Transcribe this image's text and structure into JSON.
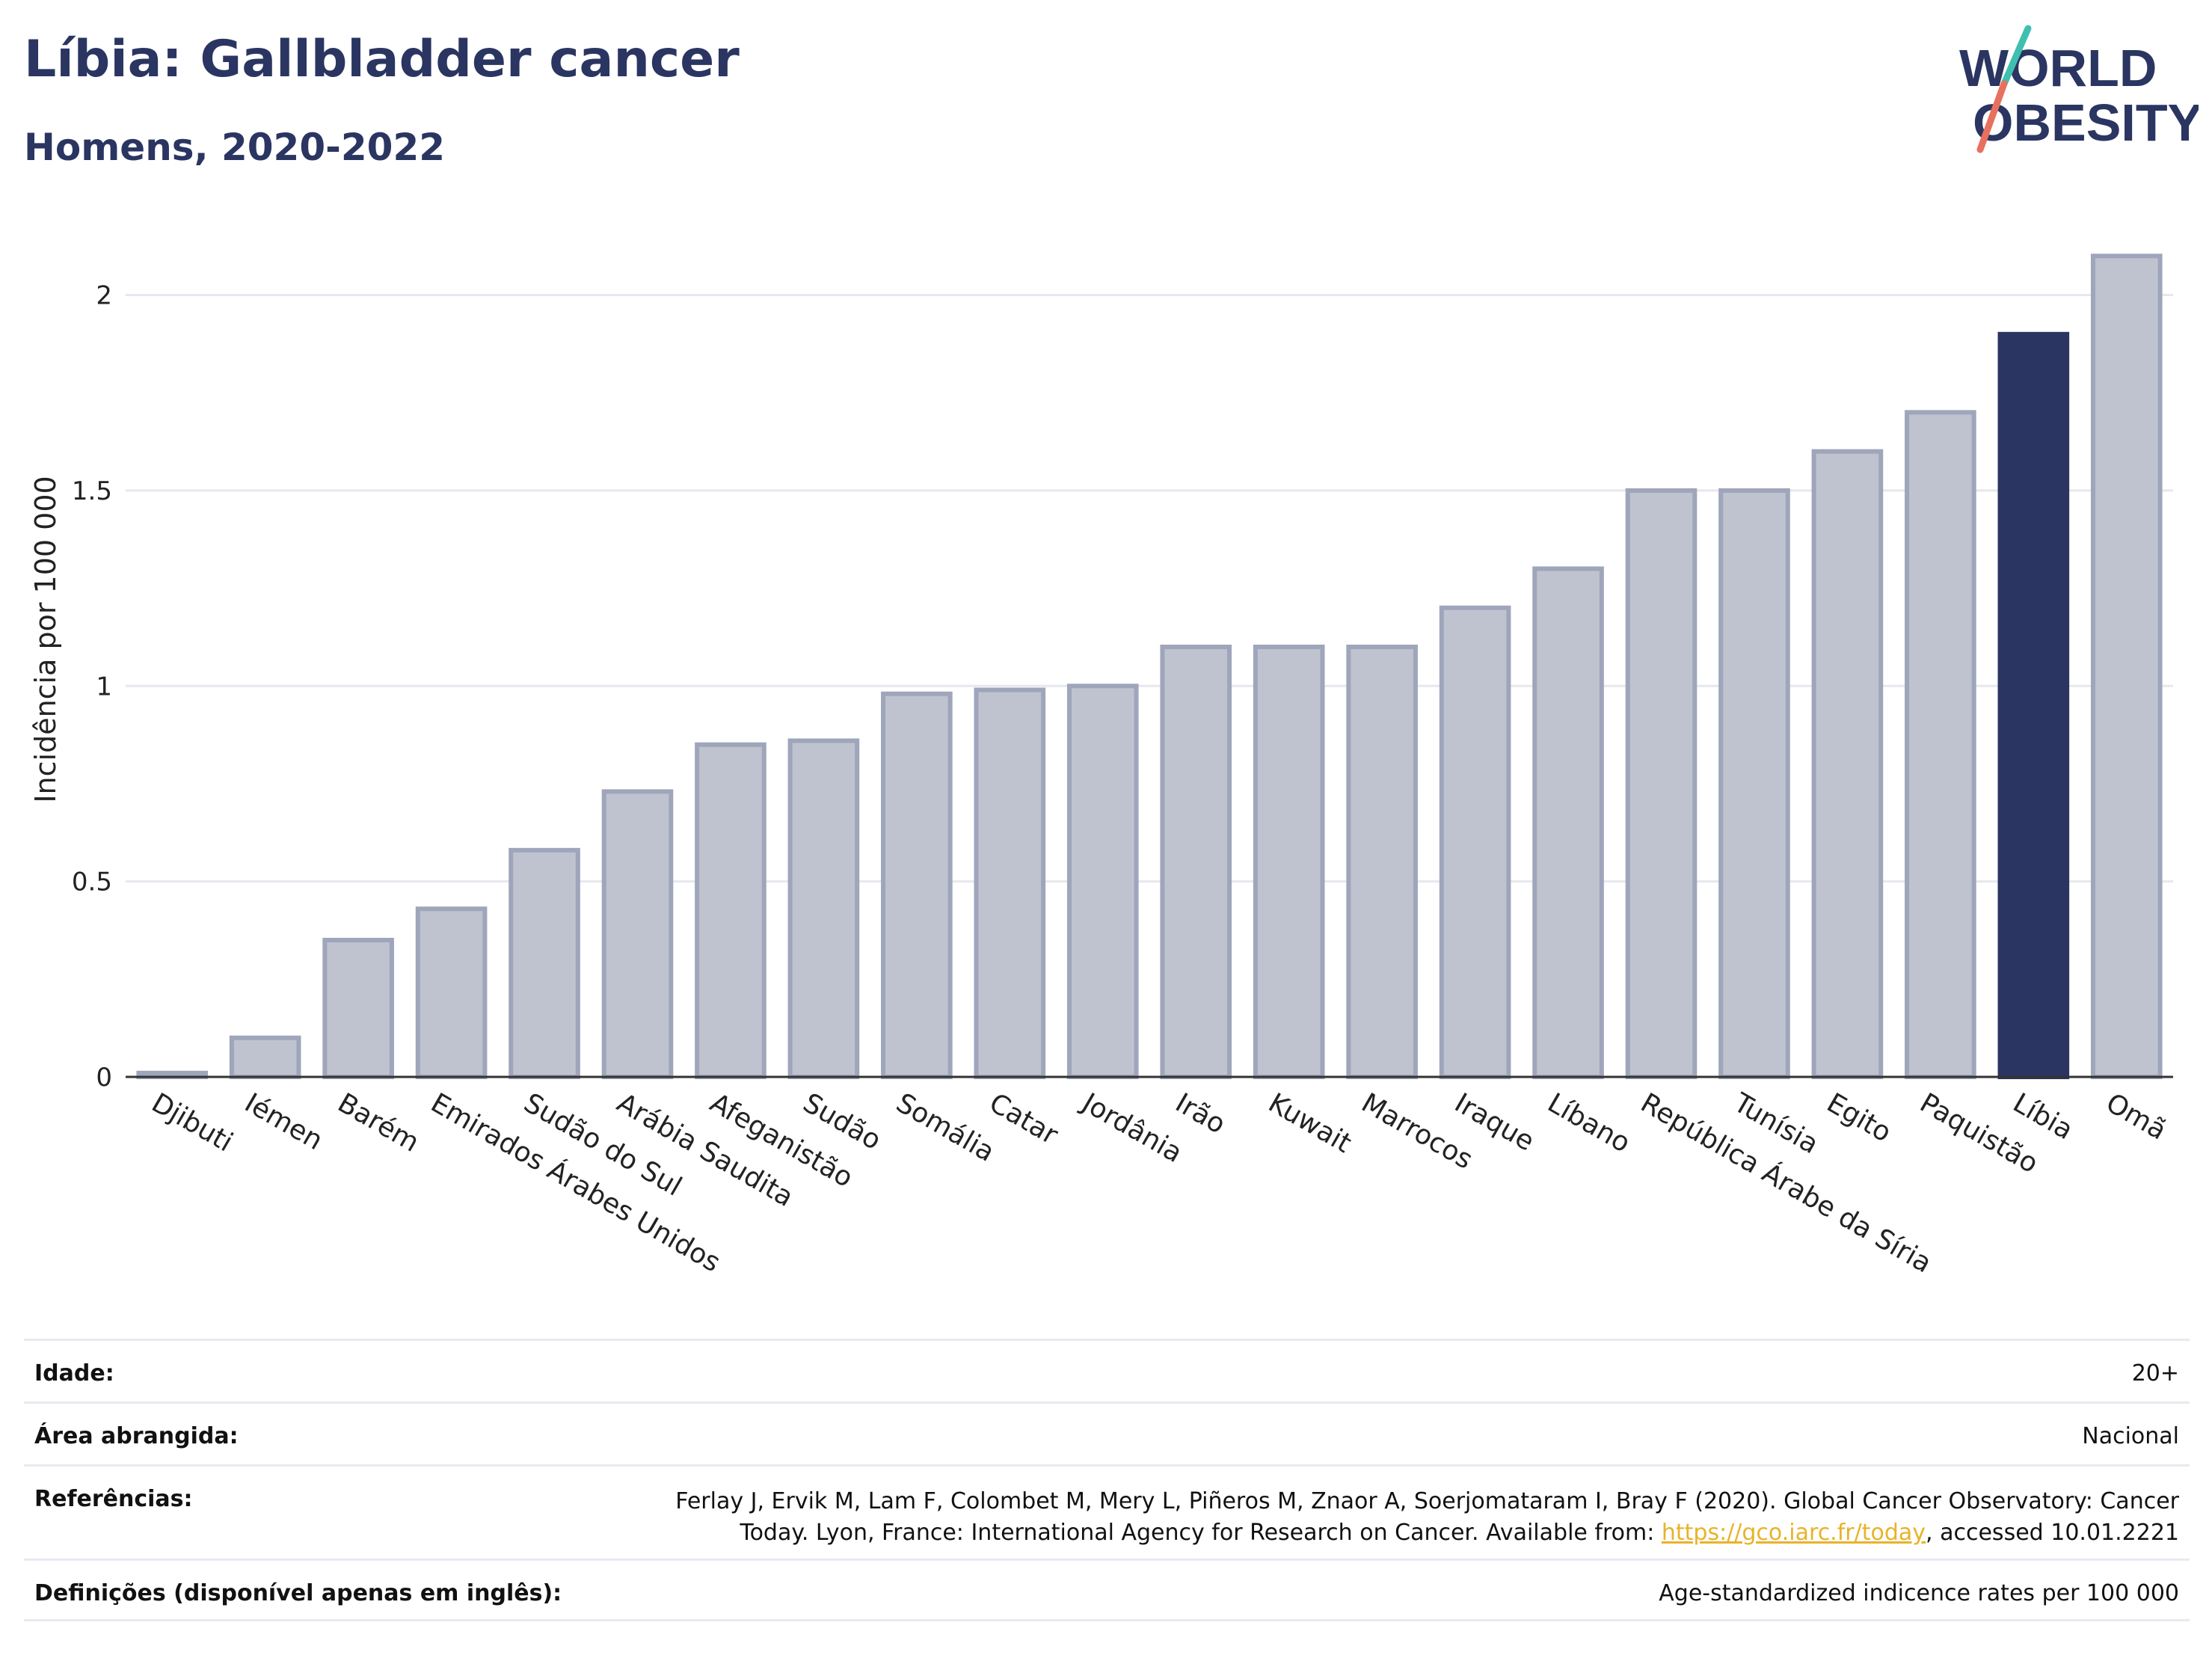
{
  "header": {
    "title": "Líbia: Gallbladder cancer",
    "subtitle": "Homens, 2020-2022"
  },
  "logo": {
    "line1": "WORLD",
    "line2": "OBESITY"
  },
  "colors": {
    "highlight": "#2a3561",
    "bar": "#bfc3d0",
    "bar_stroke": "#9fa5ba",
    "accent_teal": "#3fbfb0",
    "accent_coral": "#e8705f"
  },
  "chart_data": {
    "type": "bar",
    "ylabel": "Incidência por 100 000",
    "ylim": [
      0,
      2.2
    ],
    "yticks": [
      0,
      0.5,
      1,
      1.5,
      2
    ],
    "ytick_labels": [
      "0",
      "0.5",
      "1",
      "1.5",
      "2"
    ],
    "grid": true,
    "highlight_category": "Líbia",
    "categories": [
      "Djibuti",
      "Iémen",
      "Barém",
      "Emirados Árabes Unidos",
      "Sudão do Sul",
      "Arábia Saudita",
      "Afeganistão",
      "Sudão",
      "Somália",
      "Catar",
      "Jordânia",
      "Irão",
      "Kuwait",
      "Marrocos",
      "Iraque",
      "Líbano",
      "República Árabe da Síria",
      "Tunísia",
      "Egito",
      "Paquistão",
      "Líbia",
      "Omã"
    ],
    "values": [
      0.01,
      0.1,
      0.35,
      0.43,
      0.58,
      0.73,
      0.85,
      0.86,
      0.98,
      0.99,
      1.0,
      1.1,
      1.1,
      1.1,
      1.2,
      1.3,
      1.5,
      1.5,
      1.6,
      1.7,
      1.9,
      2.1
    ]
  },
  "footer": {
    "age_label": "Idade:",
    "age_value": "20+",
    "area_label": "Área abrangida:",
    "area_value": "Nacional",
    "ref_label": "Referências:",
    "ref_line1": "Ferlay J, Ervik M, Lam F, Colombet M, Mery L, Piñeros M, Znaor A, Soerjomataram I, Bray F (2020). Global Cancer Observatory: Cancer",
    "ref_line2_pre": "Today. Lyon, France: International Agency for Research on Cancer. Available from: ",
    "ref_link": "https://gco.iarc.fr/today",
    "ref_line2_post": ", accessed 10.01.2221",
    "def_label": "Definições (disponível apenas em inglês):",
    "def_value": "Age-standardized indicence rates per 100 000"
  }
}
